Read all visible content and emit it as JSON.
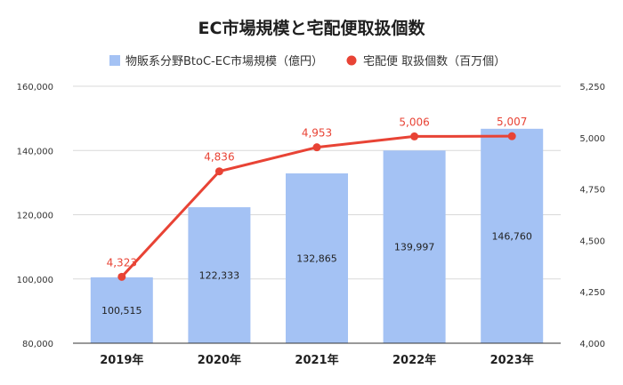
{
  "chart_data": {
    "type": "bar",
    "title": "EC市場規模と宅配便取扱個数",
    "categories": [
      "2019年",
      "2020年",
      "2021年",
      "2022年",
      "2023年"
    ],
    "series": [
      {
        "name": "物販系分野BtoC-EC市場規模（億円）",
        "type": "bar",
        "axis": "left",
        "color": "#a4c2f4",
        "values": [
          100515,
          122333,
          132865,
          139997,
          146760
        ],
        "labels": [
          "100,515",
          "122,333",
          "132,865",
          "139,997",
          "146,760"
        ]
      },
      {
        "name": "宅配便 取扱個数（百万個）",
        "type": "line",
        "axis": "right",
        "color": "#e84335",
        "values": [
          4323,
          4836,
          4953,
          5006,
          5007
        ],
        "labels": [
          "4,323",
          "4,836",
          "4,953",
          "5,006",
          "5,007"
        ]
      }
    ],
    "y_left": {
      "range": [
        80000,
        160000
      ],
      "ticks": [
        80000,
        100000,
        120000,
        140000,
        160000
      ],
      "tick_labels": [
        "80,000",
        "100,000",
        "120,000",
        "140,000",
        "160,000"
      ]
    },
    "y_right": {
      "range": [
        4000,
        5250
      ],
      "ticks": [
        4000,
        4250,
        4500,
        4750,
        5000,
        5250
      ],
      "tick_labels": [
        "4,000",
        "4,250",
        "4,500",
        "4,750",
        "5,000",
        "5,250"
      ]
    },
    "grid": true,
    "legend_position": "top-center"
  }
}
